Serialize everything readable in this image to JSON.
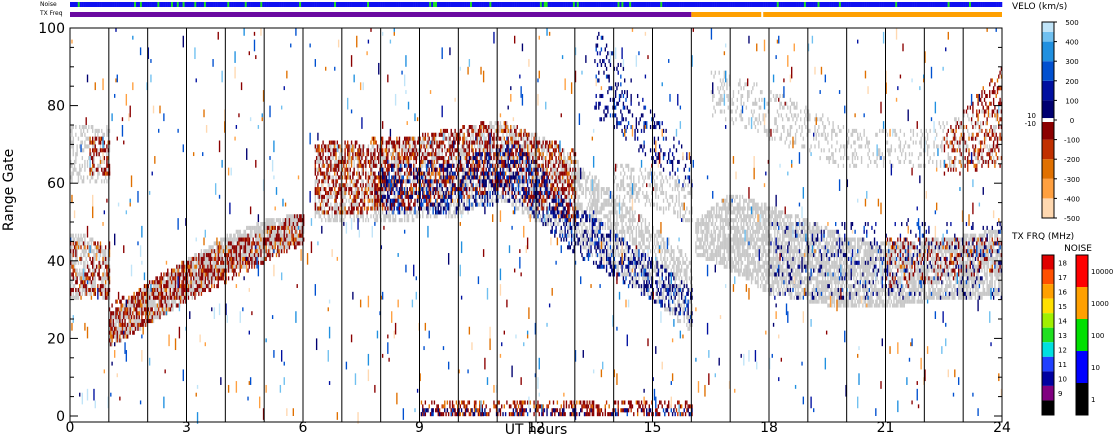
{
  "chart_data": {
    "type": "heatmap",
    "title": "",
    "xlabel": "UT hours",
    "ylabel": "Range Gate",
    "xlim": [
      0,
      24
    ],
    "ylim": [
      0,
      100
    ],
    "x_ticks": [
      "0",
      "3",
      "6",
      "9",
      "12",
      "15",
      "18",
      "21",
      "24"
    ],
    "y_ticks": [
      "0",
      "20",
      "40",
      "60",
      "80",
      "100"
    ],
    "grid": "vertical lines every hour",
    "strips": {
      "noise_label": "Noise",
      "txfreq_label": "TX Freq"
    },
    "ground_scatter_color": "#c8c8c8",
    "velocity_scale": {
      "title": "VELO (km/s)",
      "range": [
        -500,
        500
      ],
      "tick_labels": [
        "500",
        "400",
        "300",
        "200",
        "100",
        "0",
        "-100",
        "-200",
        "-300",
        "-400",
        "-500"
      ],
      "tick_values": [
        500,
        400,
        300,
        200,
        100,
        0,
        -100,
        -200,
        -300,
        -400,
        -500
      ],
      "zero_band_labels": [
        "10",
        "-10"
      ],
      "colors": [
        "#ffd8b0",
        "#ffa040",
        "#e07000",
        "#c03000",
        "#8b0000",
        "#ffffff",
        "#000070",
        "#0010a0",
        "#0050d0",
        "#2090e0",
        "#70c0f0",
        "#c0e4f8"
      ]
    },
    "txfreq_scale": {
      "title": "TX FRQ (MHz)",
      "tick_labels": [
        "18",
        "17",
        "16",
        "15",
        "14",
        "13",
        "12",
        "11",
        "10",
        "9"
      ],
      "colors": [
        "#e00000",
        "#ff5000",
        "#ffa000",
        "#ffe000",
        "#a0f000",
        "#20e020",
        "#00e0e0",
        "#2040ff",
        "#0000a0",
        "#800080",
        "#000000"
      ]
    },
    "noise_scale": {
      "title": "NOISE",
      "tick_labels": [
        "10000",
        "1000",
        "100",
        "10",
        "1"
      ],
      "colors": [
        "#ff0000",
        "#ffa000",
        "#00e000",
        "#0000ff",
        "#000000"
      ]
    },
    "regions": [
      {
        "kind": "ground",
        "times": [
          1.0,
          2.0,
          3.0,
          4.0,
          5.0,
          6.0
        ],
        "lo": [
          18,
          24,
          30,
          37,
          41,
          46
        ],
        "hi": [
          26,
          33,
          40,
          46,
          50,
          52
        ],
        "density": 0.85
      },
      {
        "kind": "ground",
        "times": [
          0.0,
          0.6,
          1.0
        ],
        "lo": [
          30,
          32,
          30
        ],
        "hi": [
          48,
          45,
          42
        ],
        "density": 0.55
      },
      {
        "kind": "ground",
        "times": [
          6.3,
          8.0,
          10.0,
          11.0,
          12.5,
          14.0,
          16.0
        ],
        "lo": [
          50,
          50,
          52,
          56,
          48,
          38,
          22
        ],
        "hi": [
          70,
          70,
          73,
          76,
          70,
          57,
          40
        ],
        "density": 0.5
      },
      {
        "kind": "ground",
        "times": [
          16.1,
          17.0,
          18.0,
          19.0,
          20.0,
          21.0,
          22.0,
          23.0,
          24.0
        ],
        "lo": [
          42,
          38,
          32,
          30,
          28,
          28,
          30,
          30,
          32
        ],
        "hi": [
          50,
          57,
          54,
          50,
          46,
          44,
          45,
          46,
          48
        ],
        "density": 0.7
      },
      {
        "kind": "ground",
        "times": [
          14.0,
          15.0,
          16.0
        ],
        "lo": [
          57,
          54,
          50
        ],
        "hi": [
          65,
          63,
          60
        ],
        "density": 0.35
      },
      {
        "kind": "ground",
        "times": [
          16.5,
          18.0,
          20.0,
          22.0,
          24.0
        ],
        "lo": [
          78,
          72,
          64,
          64,
          66
        ],
        "hi": [
          90,
          84,
          74,
          74,
          80
        ],
        "density": 0.22
      },
      {
        "kind": "ground",
        "times": [
          0.0,
          1.0
        ],
        "lo": [
          60,
          60
        ],
        "hi": [
          75,
          75
        ],
        "density": 0.3
      },
      {
        "kind": "neg",
        "times": [
          1.0,
          3.0,
          6.0
        ],
        "lo": [
          18,
          30,
          45
        ],
        "hi": [
          28,
          40,
          52
        ],
        "density": 0.45
      },
      {
        "kind": "neg",
        "times": [
          0.0,
          1.0
        ],
        "lo": [
          30,
          30
        ],
        "hi": [
          45,
          45
        ],
        "density": 0.3
      },
      {
        "kind": "neg",
        "times": [
          0.5,
          1.0
        ],
        "lo": [
          62,
          62
        ],
        "hi": [
          72,
          72
        ],
        "density": 0.35
      },
      {
        "kind": "neg",
        "times": [
          6.3,
          9.0,
          11.0,
          13.0
        ],
        "lo": [
          52,
          54,
          58,
          50
        ],
        "hi": [
          70,
          72,
          76,
          68
        ],
        "density": 0.4
      },
      {
        "kind": "neg",
        "times": [
          21.0,
          24.0
        ],
        "lo": [
          33,
          38
        ],
        "hi": [
          45,
          46
        ],
        "density": 0.2
      },
      {
        "kind": "neg",
        "times": [
          22.5,
          24.0
        ],
        "lo": [
          62,
          65
        ],
        "hi": [
          72,
          90
        ],
        "density": 0.25
      },
      {
        "kind": "neg",
        "times": [
          9.0,
          16.0
        ],
        "lo": [
          0,
          0
        ],
        "hi": [
          3,
          4
        ],
        "density": 0.35
      },
      {
        "kind": "pos",
        "times": [
          8.0,
          10.0,
          11.5,
          13.0,
          15.0,
          16.0
        ],
        "lo": [
          52,
          53,
          56,
          42,
          30,
          24
        ],
        "hi": [
          64,
          66,
          70,
          54,
          40,
          32
        ],
        "density": 0.3
      },
      {
        "kind": "pos",
        "times": [
          13.5,
          15.0,
          16.0
        ],
        "lo": [
          78,
          66,
          58
        ],
        "hi": [
          100,
          78,
          66
        ],
        "density": 0.2
      },
      {
        "kind": "pos",
        "times": [
          18.0,
          24.0
        ],
        "lo": [
          30,
          30
        ],
        "hi": [
          50,
          50
        ],
        "density": 0.1
      },
      {
        "kind": "pos",
        "times": [
          9.0,
          16.0
        ],
        "lo": [
          0,
          0
        ],
        "hi": [
          2,
          2
        ],
        "density": 0.2
      },
      {
        "kind": "sparse",
        "times": [
          0.0,
          24.0
        ],
        "lo": [
          0,
          0
        ],
        "hi": [
          100,
          100
        ],
        "density": 0.012
      }
    ],
    "noise_strip": {
      "base": "blue",
      "green_frequency": 0.08
    },
    "txfreq_strip": {
      "change_hour": 16.0,
      "before": "purple",
      "after": "orange",
      "gap_hour": 17.8
    }
  }
}
